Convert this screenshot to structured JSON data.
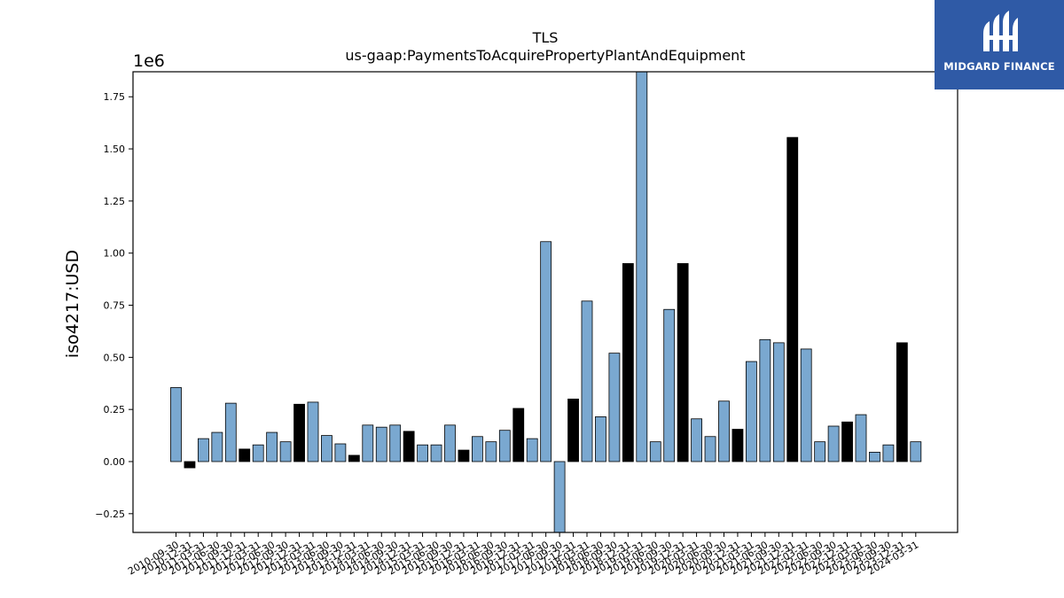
{
  "brand": {
    "name": "MIDGARD FINANCE",
    "bg_color": "#2f5aa6",
    "icon": "midgard-logo-icon"
  },
  "chart_data": {
    "type": "bar",
    "title": "TLS",
    "subtitle": "us-gaap:PaymentsToAcquirePropertyPlantAndEquipment",
    "ylabel": "iso4217:USD",
    "xlabel": "",
    "y_exponent_label": "1e6",
    "y_scale": 1000000,
    "ylim": [
      -0.34,
      1.87
    ],
    "yticks": [
      -0.25,
      0.0,
      0.25,
      0.5,
      0.75,
      1.0,
      1.25,
      1.5,
      1.75
    ],
    "ytick_labels": [
      "−0.25",
      "0.00",
      "0.25",
      "0.50",
      "0.75",
      "1.00",
      "1.25",
      "1.50",
      "1.75"
    ],
    "grid": false,
    "colors": {
      "quarterly": "#7aa8d0",
      "annual": "#000000"
    },
    "categories": [
      "2010-09-30",
      "2010-12-31",
      "2011-03-31",
      "2011-06-30",
      "2011-09-30",
      "2011-12-31",
      "2012-03-31",
      "2012-06-30",
      "2012-09-30",
      "2012-12-31",
      "2013-03-31",
      "2013-06-30",
      "2013-09-30",
      "2013-12-31",
      "2014-03-31",
      "2014-06-30",
      "2014-09-30",
      "2014-12-31",
      "2015-03-31",
      "2015-06-30",
      "2015-09-30",
      "2015-12-31",
      "2016-03-31",
      "2016-06-30",
      "2016-09-30",
      "2016-12-31",
      "2017-03-31",
      "2017-06-30",
      "2017-09-30",
      "2017-12-31",
      "2018-03-31",
      "2018-06-30",
      "2018-09-30",
      "2018-12-31",
      "2019-03-31",
      "2019-06-30",
      "2019-09-30",
      "2019-12-31",
      "2020-03-31",
      "2020-06-30",
      "2020-09-30",
      "2020-12-31",
      "2021-03-31",
      "2021-06-30",
      "2021-09-30",
      "2021-12-31",
      "2022-03-31",
      "2022-06-30",
      "2022-09-30",
      "2022-12-31",
      "2023-03-31",
      "2023-06-30",
      "2023-09-30",
      "2023-12-31",
      "2024-03-31"
    ],
    "values": [
      0.355,
      -0.03,
      0.11,
      0.14,
      0.28,
      0.06,
      0.08,
      0.14,
      0.095,
      0.275,
      0.285,
      0.125,
      0.085,
      0.03,
      0.175,
      0.165,
      0.175,
      0.145,
      0.08,
      0.08,
      0.175,
      0.055,
      0.12,
      0.095,
      0.15,
      0.255,
      0.11,
      1.055,
      -0.36,
      0.3,
      0.77,
      0.215,
      0.52,
      0.95,
      1.88,
      0.095,
      0.73,
      0.95,
      0.205,
      0.12,
      0.29,
      0.155,
      0.48,
      0.585,
      0.57,
      1.555,
      0.54,
      0.095,
      0.17,
      0.19,
      0.225,
      0.045,
      0.08,
      0.57,
      0.095
    ],
    "period_type": [
      "q",
      "a",
      "q",
      "q",
      "q",
      "a",
      "q",
      "q",
      "q",
      "a",
      "q",
      "q",
      "q",
      "a",
      "q",
      "q",
      "q",
      "a",
      "q",
      "q",
      "q",
      "a",
      "q",
      "q",
      "q",
      "a",
      "q",
      "q",
      "q",
      "a",
      "q",
      "q",
      "q",
      "a",
      "q",
      "q",
      "q",
      "a",
      "q",
      "q",
      "q",
      "a",
      "q",
      "q",
      "q",
      "a",
      "q",
      "q",
      "q",
      "a",
      "q",
      "q",
      "q",
      "a",
      "q"
    ]
  }
}
